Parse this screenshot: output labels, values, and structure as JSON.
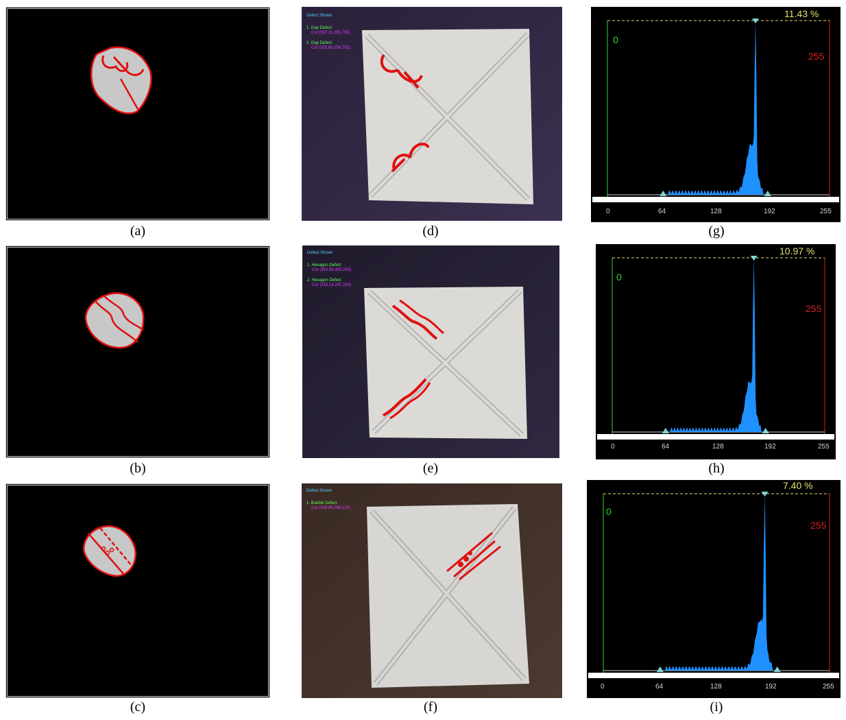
{
  "captions": [
    "(a)",
    "(b)",
    "(c)",
    "(d)",
    "(e)",
    "(f)",
    "(g)",
    "(h)",
    "(i)"
  ],
  "photo_overlays": [
    {
      "title": "Defect Shown",
      "items": [
        {
          "label": "1. Gap Defect",
          "cor": "Cor (337,11,255,755)"
        },
        {
          "label": "2. Gap Defect",
          "cor": "Cor (315,80,256,752)"
        }
      ]
    },
    {
      "title": "Defect Shown",
      "items": [
        {
          "label": "1. Hexagon Defect",
          "cor": "Cor (352,96,350,250)"
        },
        {
          "label": "2. Hexagon Defect",
          "cor": "Cor (315,14,297,250)"
        }
      ]
    },
    {
      "title": "Defect Shown",
      "items": [
        {
          "label": "1. Bubble Defect",
          "cor": "Cor (316,85,356,120)"
        }
      ]
    }
  ],
  "histograms": [
    {
      "percent": "11.43 %",
      "min_label": "0",
      "max_label": "255",
      "ticks": [
        "0",
        "64",
        "128",
        "192",
        "255"
      ],
      "peak_level": 170
    },
    {
      "percent": "10.97 %",
      "min_label": "0",
      "max_label": "255",
      "ticks": [
        "0",
        "64",
        "128",
        "192",
        "255"
      ],
      "peak_level": 170
    },
    {
      "percent": "7.40 %",
      "min_label": "0",
      "max_label": "255",
      "ticks": [
        "0",
        "64",
        "128",
        "192",
        "255"
      ],
      "peak_level": 182
    }
  ],
  "colors": {
    "defect_red": "#e01010",
    "hist_blue": "#1e90ff",
    "blob_gray": "#c8c8c8"
  }
}
